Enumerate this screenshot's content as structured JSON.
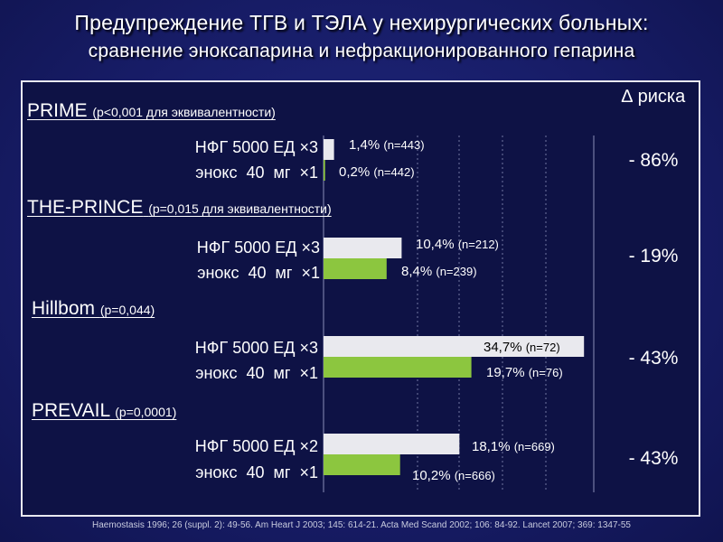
{
  "title_line1": "Предупреждение ТГВ и ТЭЛА у нехирургических больных:",
  "title_line2": "сравнение эноксапарина и нефракционированного гепарина",
  "risk_header": "∆ риска",
  "footnote": "Haemostasis 1996; 26 (suppl. 2): 49-56. Am Heart J 2003; 145: 614-21. Acta Med Scand 2002; 106: 84-92. Lancet 2007; 369: 1347-55",
  "colors": {
    "ufh": "#e9e9ee",
    "enox": "#8cc63f",
    "background": "#1a1f6e",
    "grid": "#8a8fb8"
  },
  "studies": [
    {
      "name": "PRIME",
      "pvalue": "(p<0,001 для эквивалентности)",
      "ufh_label": "НФГ 5000 ЕД ×3",
      "enox_label": "энокс  40  мг  ×1",
      "ufh_value_label": "1,4%",
      "ufh_n": "(n=443)",
      "enox_value_label": "0,2%",
      "enox_n": "(n=442)",
      "risk": "- 86%"
    },
    {
      "name": "THE-PRINCE",
      "pvalue": "(p=0,015 для эквивалентности)",
      "ufh_label": "НФГ 5000 ЕД ×3",
      "enox_label": "энокс  40  мг  ×1",
      "ufh_value_label": "10,4%",
      "ufh_n": "(n=212)",
      "enox_value_label": "8,4%",
      "enox_n": "(n=239)",
      "risk": "- 19%"
    },
    {
      "name": "Hillbom",
      "pvalue": "(p=0,044)",
      "ufh_label": "НФГ 5000 ЕД ×3",
      "enox_label": "энокс  40  мг  ×1",
      "ufh_value_label": "34,7%",
      "ufh_n": "(n=72)",
      "enox_value_label": "19,7%",
      "enox_n": "(n=76)",
      "risk": "- 43%"
    },
    {
      "name": "PREVAIL",
      "pvalue": "(p=0,0001)",
      "ufh_label": "НФГ 5000 ЕД ×2",
      "enox_label": "энокс  40  мг  ×1",
      "ufh_value_label": "18,1%",
      "ufh_n": "(n=669)",
      "enox_value_label": "10,2%",
      "enox_n": "(n=666)",
      "risk": "- 43%"
    }
  ],
  "chart_data": {
    "type": "bar",
    "orientation": "horizontal",
    "categories": [
      "PRIME",
      "THE-PRINCE",
      "Hillbom",
      "PREVAIL"
    ],
    "series": [
      {
        "name": "НФГ",
        "values": [
          1.4,
          10.4,
          34.7,
          18.1
        ]
      },
      {
        "name": "энокс",
        "values": [
          0.2,
          8.4,
          19.7,
          10.2
        ]
      }
    ],
    "xlim": [
      0,
      36
    ],
    "grid": true
  }
}
